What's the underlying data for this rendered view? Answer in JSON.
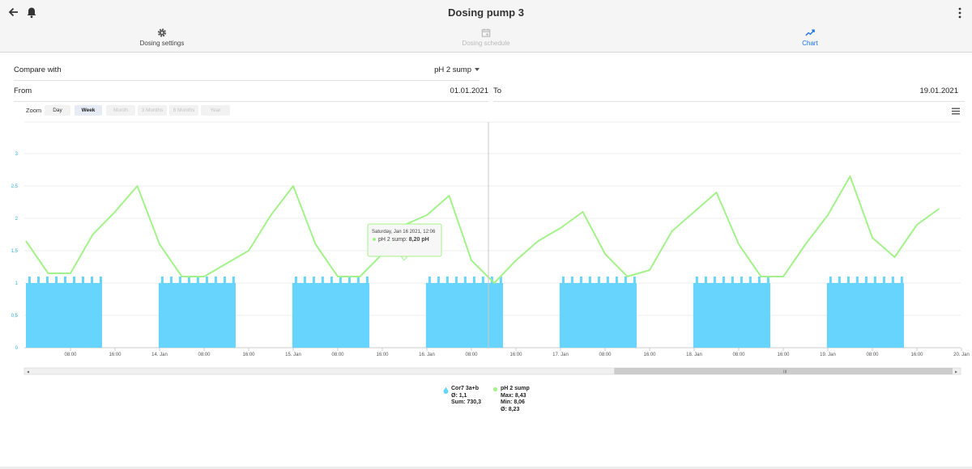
{
  "header": {
    "title": "Dosing pump 3",
    "tabs": [
      {
        "label": "Dosing settings",
        "icon": "gear-icon",
        "state": "normal"
      },
      {
        "label": "Dosing schedule",
        "icon": "calendar-icon",
        "state": "disabled"
      },
      {
        "label": "Chart",
        "icon": "chart-icon",
        "state": "active"
      }
    ]
  },
  "compare": {
    "label": "Compare with",
    "value": "pH 2 sump"
  },
  "range": {
    "from_label": "From",
    "from_value": "01.01.2021",
    "to_label": "To",
    "to_value": "19.01.2021"
  },
  "zoom": {
    "label": "Zoom",
    "options": [
      {
        "label": "Day",
        "state": "normal"
      },
      {
        "label": "Week",
        "state": "selected"
      },
      {
        "label": "Month",
        "state": "disabled"
      },
      {
        "label": "3 Months",
        "state": "disabled"
      },
      {
        "label": "6 Months",
        "state": "disabled"
      },
      {
        "label": "Year",
        "state": "disabled"
      }
    ]
  },
  "colors": {
    "accent": "#1a73e8",
    "bars": "#66d4fc",
    "ph_line": "#a4f28a"
  },
  "chart_data": {
    "type": "bar",
    "y_ticks": [
      "0",
      "0,5",
      "1",
      "1,5",
      "2",
      "2,5",
      "3"
    ],
    "ylim": [
      0,
      3.2
    ],
    "x_ticks": [
      "08:00",
      "16:00",
      "14. Jan",
      "08:00",
      "16:00",
      "15. Jan",
      "08:00",
      "16:00",
      "16. Jan",
      "08:00",
      "16:00",
      "17. Jan",
      "08:00",
      "16:00",
      "18. Jan",
      "08:00",
      "16:00",
      "19. Jan",
      "08:00",
      "16:00",
      "20. Jan"
    ],
    "series": [
      {
        "name": "Cor7 3a+b",
        "kind": "bar",
        "blocks": [
          {
            "start": "13. Jan 00:00",
            "end": "13. Jan 13:40",
            "value": 1.1
          },
          {
            "start": "13. Jan 23:50",
            "end": "14. Jan 13:40",
            "value": 1.1
          },
          {
            "start": "14. Jan 23:50",
            "end": "15. Jan 13:40",
            "value": 1.1
          },
          {
            "start": "15. Jan 23:50",
            "end": "16. Jan 13:40",
            "value": 1.1
          },
          {
            "start": "16. Jan 23:50",
            "end": "17. Jan 13:40",
            "value": 1.1
          },
          {
            "start": "17. Jan 23:50",
            "end": "18. Jan 13:40",
            "value": 1.1
          },
          {
            "start": "18. Jan 23:50",
            "end": "19. Jan 13:40",
            "value": 1.1
          }
        ]
      },
      {
        "name": "pH 2 sump",
        "kind": "line",
        "points": [
          {
            "t": "13. Jan 00:00",
            "v": 1.65
          },
          {
            "t": "13. Jan 04:00",
            "v": 1.15
          },
          {
            "t": "13. Jan 08:00",
            "v": 1.15
          },
          {
            "t": "13. Jan 12:00",
            "v": 1.75
          },
          {
            "t": "13. Jan 16:00",
            "v": 2.1
          },
          {
            "t": "13. Jan 20:00",
            "v": 2.5
          },
          {
            "t": "14. Jan 00:00",
            "v": 1.6
          },
          {
            "t": "14. Jan 04:00",
            "v": 1.1
          },
          {
            "t": "14. Jan 08:00",
            "v": 1.1
          },
          {
            "t": "14. Jan 16:00",
            "v": 1.5
          },
          {
            "t": "14. Jan 20:00",
            "v": 2.05
          },
          {
            "t": "15. Jan 00:00",
            "v": 2.5
          },
          {
            "t": "15. Jan 04:00",
            "v": 1.6
          },
          {
            "t": "15. Jan 08:00",
            "v": 1.1
          },
          {
            "t": "15. Jan 12:00",
            "v": 1.1
          },
          {
            "t": "15. Jan 16:00",
            "v": 1.45
          },
          {
            "t": "15. Jan 20:00",
            "v": 1.9
          },
          {
            "t": "16. Jan 00:00",
            "v": 2.05
          },
          {
            "t": "16. Jan 04:00",
            "v": 2.35
          },
          {
            "t": "16. Jan 08:00",
            "v": 1.35
          },
          {
            "t": "16. Jan 12:06",
            "v": 1.0
          },
          {
            "t": "16. Jan 16:00",
            "v": 1.35
          },
          {
            "t": "16. Jan 20:00",
            "v": 1.65
          },
          {
            "t": "17. Jan 00:00",
            "v": 1.85
          },
          {
            "t": "17. Jan 04:00",
            "v": 2.1
          },
          {
            "t": "17. Jan 08:00",
            "v": 1.45
          },
          {
            "t": "17. Jan 12:00",
            "v": 1.1
          },
          {
            "t": "17. Jan 16:00",
            "v": 1.2
          },
          {
            "t": "17. Jan 20:00",
            "v": 1.8
          },
          {
            "t": "18. Jan 00:00",
            "v": 2.1
          },
          {
            "t": "18. Jan 04:00",
            "v": 2.4
          },
          {
            "t": "18. Jan 08:00",
            "v": 1.6
          },
          {
            "t": "18. Jan 12:00",
            "v": 1.1
          },
          {
            "t": "18. Jan 16:00",
            "v": 1.1
          },
          {
            "t": "18. Jan 20:00",
            "v": 1.6
          },
          {
            "t": "19. Jan 00:00",
            "v": 2.05
          },
          {
            "t": "19. Jan 04:00",
            "v": 2.65
          },
          {
            "t": "19. Jan 08:00",
            "v": 1.7
          },
          {
            "t": "19. Jan 12:00",
            "v": 1.4
          },
          {
            "t": "19. Jan 16:00",
            "v": 1.9
          },
          {
            "t": "19. Jan 20:00",
            "v": 2.15
          }
        ]
      }
    ],
    "tooltip": {
      "date": "Saturday, Jan 16 2021, 12:06",
      "series": "pH 2 sump",
      "value": "8,20 pH"
    },
    "legend": [
      {
        "name": "Cor7 3a+b",
        "stats": [
          "Ø: 1,1",
          "Sum: 730,3"
        ]
      },
      {
        "name": "pH 2 sump",
        "stats": [
          "Max: 8,43",
          "Min: 8,06",
          "Ø: 8,23"
        ]
      }
    ],
    "navigator": {
      "handle": "III",
      "window_start": 0.63,
      "window_end": 1.0
    }
  }
}
